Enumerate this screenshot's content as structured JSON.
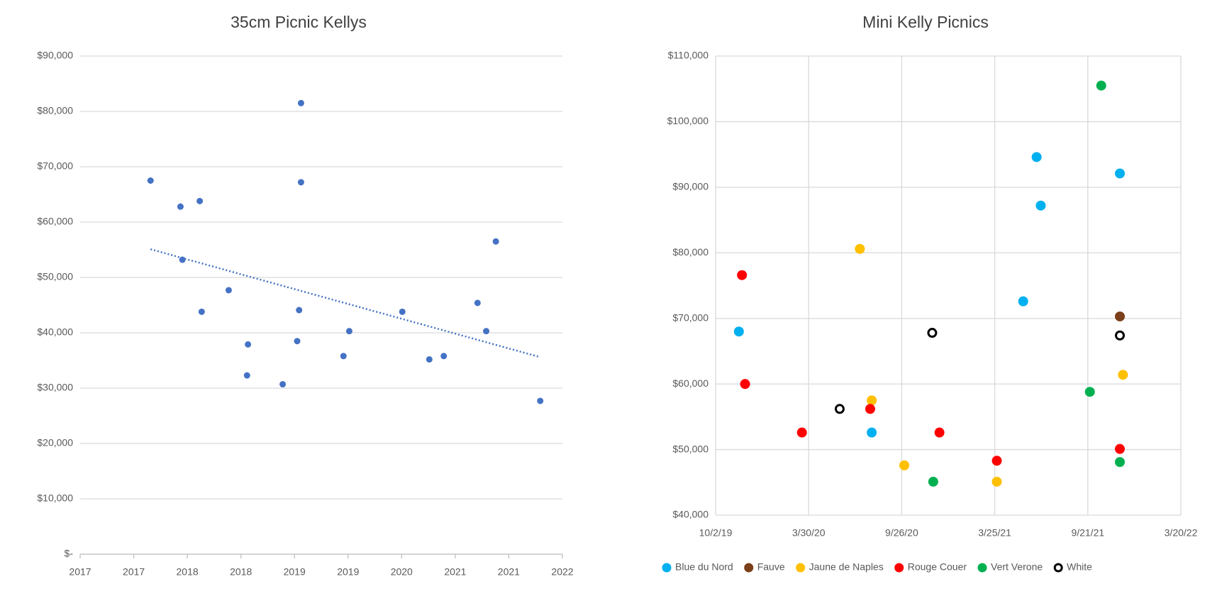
{
  "chart_data": [
    {
      "type": "scatter",
      "title": "35cm Picnic Kellys",
      "xlim": [
        2017,
        2022
      ],
      "xticks": [
        {
          "value": 2017,
          "label": "2017"
        },
        {
          "value": 2017.556,
          "label": "2017"
        },
        {
          "value": 2018.111,
          "label": "2018"
        },
        {
          "value": 2018.667,
          "label": "2018"
        },
        {
          "value": 2019.222,
          "label": "2019"
        },
        {
          "value": 2019.778,
          "label": "2019"
        },
        {
          "value": 2020.333,
          "label": "2020"
        },
        {
          "value": 2020.889,
          "label": "2021"
        },
        {
          "value": 2021.444,
          "label": "2021"
        },
        {
          "value": 2022,
          "label": "2022"
        }
      ],
      "ylim": [
        0,
        90000
      ],
      "yticks": [
        {
          "value": 0,
          "label": "$-"
        },
        {
          "value": 10000,
          "label": "$10,000"
        },
        {
          "value": 20000,
          "label": "$20,000"
        },
        {
          "value": 30000,
          "label": "$30,000"
        },
        {
          "value": 40000,
          "label": "$40,000"
        },
        {
          "value": 50000,
          "label": "$50,000"
        },
        {
          "value": 60000,
          "label": "$60,000"
        },
        {
          "value": 70000,
          "label": "$70,000"
        },
        {
          "value": 80000,
          "label": "$80,000"
        },
        {
          "value": 90000,
          "label": "$90,000"
        }
      ],
      "grid": "y",
      "series": [
        {
          "color": "#4472c4",
          "x": [
            2017.73,
            2018.04,
            2018.24,
            2018.06,
            2018.26,
            2018.54,
            2018.74,
            2018.73,
            2019.1,
            2019.29,
            2019.29,
            2019.27,
            2019.25,
            2019.73,
            2019.79,
            2020.34,
            2020.62,
            2020.77,
            2021.12,
            2021.21,
            2021.31,
            2021.77
          ],
          "values": [
            67500,
            62800,
            63800,
            53200,
            43800,
            47700,
            37900,
            32300,
            30700,
            81500,
            67200,
            44100,
            38500,
            35800,
            40300,
            43800,
            35200,
            35800,
            45400,
            40300,
            56500,
            27700
          ]
        }
      ],
      "trendline": {
        "color": "#4472c4",
        "x": [
          2017.73,
          2021.77
        ],
        "values": [
          55100,
          35600
        ]
      }
    },
    {
      "type": "scatter",
      "title": "Mini Kelly Picnics",
      "xlim": [
        43740,
        44640
      ],
      "xticks": [
        {
          "value": 43740,
          "label": "10/2/19"
        },
        {
          "value": 43920,
          "label": "3/30/20"
        },
        {
          "value": 44100,
          "label": "9/26/20"
        },
        {
          "value": 44280,
          "label": "3/25/21"
        },
        {
          "value": 44460,
          "label": "9/21/21"
        },
        {
          "value": 44640,
          "label": "3/20/22"
        }
      ],
      "ylim": [
        40000,
        110000
      ],
      "yticks": [
        {
          "value": 40000,
          "label": "$40,000"
        },
        {
          "value": 50000,
          "label": "$50,000"
        },
        {
          "value": 60000,
          "label": "$60,000"
        },
        {
          "value": 70000,
          "label": "$70,000"
        },
        {
          "value": 80000,
          "label": "$80,000"
        },
        {
          "value": 90000,
          "label": "$90,000"
        },
        {
          "value": 100000,
          "label": "$100,000"
        },
        {
          "value": 110000,
          "label": "$110,000"
        }
      ],
      "grid": "both",
      "legend": "bottom",
      "series": [
        {
          "name": "Blue du Nord",
          "color": "#00b0f0",
          "x": [
            43785,
            44042,
            44335,
            44361,
            44369,
            44522
          ],
          "values": [
            68000,
            52600,
            72600,
            94600,
            87200,
            92100
          ]
        },
        {
          "name": "Fauve",
          "color": "#7b3f1a",
          "x": [
            44522
          ],
          "values": [
            70300
          ]
        },
        {
          "name": "Jaune de Naples",
          "color": "#ffc000",
          "x": [
            44019,
            44042,
            44105,
            44284,
            44528
          ],
          "values": [
            80600,
            57500,
            47600,
            45100,
            61400
          ]
        },
        {
          "name": "Rouge Couer",
          "color": "#ff0000",
          "x": [
            43791,
            43797,
            43907,
            44039,
            44173,
            44284,
            44522
          ],
          "values": [
            76600,
            60000,
            52600,
            56200,
            52600,
            48300,
            50100
          ]
        },
        {
          "name": "Vert Verone",
          "color": "#00b050",
          "x": [
            44161,
            44464,
            44486,
            44522
          ],
          "values": [
            45100,
            58800,
            105500,
            48100
          ]
        },
        {
          "name": "White",
          "color": "#000000",
          "marker": "hollow",
          "x": [
            43980,
            44159,
            44522
          ],
          "values": [
            56200,
            67800,
            67400
          ]
        }
      ]
    }
  ]
}
